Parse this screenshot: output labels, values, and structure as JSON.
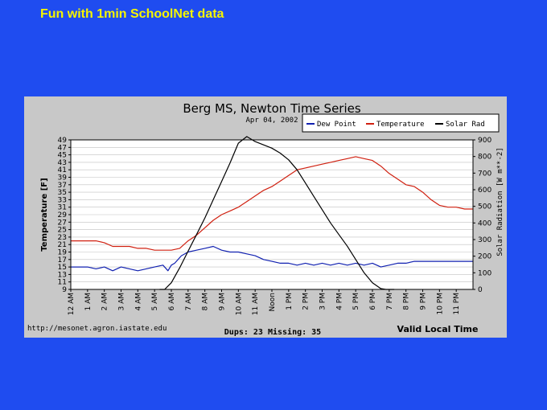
{
  "page": {
    "title": "Fun with 1min SchoolNet data"
  },
  "colors": {
    "background": "#1f4cf0",
    "panel": "#c8c8c8",
    "plot": "#ffffff",
    "title_text": "#f5f500",
    "dew_point": "#1020b0",
    "temperature": "#d02010",
    "solar": "#000000"
  },
  "chart_data": {
    "type": "line",
    "title": "Berg MS, Newton Time Series",
    "subtitle": "Apr 04, 2002",
    "xlabel": "Valid Local Time",
    "ylabel_left": "Temperature [F]",
    "ylabel_right": "Solar Radiation [W m**-2]",
    "ylim_left": [
      9,
      49
    ],
    "ylim_right": [
      0,
      900
    ],
    "xlim_hours": [
      0,
      24
    ],
    "grid": true,
    "legend_position": "top-right",
    "x_ticks": [
      "12 AM",
      "1 AM",
      "2 AM",
      "3 AM",
      "4 AM",
      "5 AM",
      "6 AM",
      "7 AM",
      "8 AM",
      "9 AM",
      "10 AM",
      "11 AM",
      "Noon",
      "1 PM",
      "2 PM",
      "3 PM",
      "4 PM",
      "5 PM",
      "6 PM",
      "7 PM",
      "8 PM",
      "9 PM",
      "10 PM",
      "11 PM"
    ],
    "y_left_ticks": [
      "9",
      "11",
      "13",
      "15",
      "17",
      "19",
      "21",
      "23",
      "25",
      "27",
      "29",
      "31",
      "33",
      "35",
      "37",
      "39",
      "41",
      "43",
      "45",
      "47",
      "49"
    ],
    "y_right_ticks": [
      "0",
      "100",
      "200",
      "300",
      "400",
      "500",
      "600",
      "700",
      "800",
      "900"
    ],
    "footer_left": "http://mesonet.agron.iastate.edu",
    "footer_center": "Dups: 23 Missing: 35",
    "series": [
      {
        "name": "Dew Point",
        "axis": "left",
        "x": [
          0,
          1,
          1.5,
          2,
          2.5,
          3,
          3.5,
          4,
          4.5,
          5,
          5.5,
          5.8,
          6,
          6.2,
          6.6,
          7,
          7.5,
          8,
          8.5,
          9,
          9.5,
          10,
          10.5,
          11,
          11.5,
          12,
          12.5,
          13,
          13.5,
          14,
          14.5,
          15,
          15.5,
          16,
          16.5,
          17,
          17.5,
          18,
          18.5,
          19,
          19.5,
          20,
          20.5,
          21,
          21.5,
          22,
          22.5,
          23,
          23.5,
          24
        ],
        "y": [
          15,
          15,
          14.5,
          15,
          14,
          15,
          14.5,
          14,
          14.5,
          15,
          15.5,
          14,
          15.5,
          16,
          18,
          19,
          19.5,
          20,
          20.5,
          19.5,
          19,
          19,
          18.5,
          18,
          17,
          16.5,
          16,
          16,
          15.5,
          16,
          15.5,
          16,
          15.5,
          16,
          15.5,
          16,
          15.5,
          16,
          15,
          15.5,
          16,
          16,
          16.5,
          16.5,
          16.5,
          16.5,
          16.5,
          16.5,
          16.5,
          16.5
        ]
      },
      {
        "name": "Temperature",
        "axis": "left",
        "x": [
          0,
          0.5,
          1,
          1.5,
          2,
          2.5,
          3,
          3.5,
          4,
          4.5,
          5,
          5.5,
          6,
          6.5,
          7,
          7.5,
          8,
          8.5,
          9,
          9.5,
          10,
          10.5,
          11,
          11.5,
          12,
          12.5,
          13,
          13.5,
          14,
          14.5,
          15,
          15.5,
          16,
          16.5,
          17,
          17.5,
          18,
          18.5,
          19,
          19.5,
          20,
          20.5,
          21,
          21.5,
          22,
          22.5,
          23,
          23.5,
          24
        ],
        "y": [
          22,
          22,
          22,
          22,
          21.5,
          20.5,
          20.5,
          20.5,
          20,
          20,
          19.5,
          19.5,
          19.5,
          20,
          22,
          23.5,
          25.5,
          27.5,
          29,
          30,
          31,
          32.5,
          34,
          35.5,
          36.5,
          38,
          39.5,
          41,
          41.5,
          42,
          42.5,
          43,
          43.5,
          44,
          44.5,
          44,
          43.5,
          42,
          40,
          38.5,
          37,
          36.5,
          35,
          33,
          31.5,
          31,
          31,
          30.5,
          30.5
        ]
      },
      {
        "name": "Solar Rad",
        "axis": "right",
        "x": [
          5.3,
          5.6,
          6,
          6.5,
          7,
          7.5,
          8,
          8.5,
          9,
          9.5,
          10,
          10.5,
          11,
          11.5,
          12,
          12.5,
          13,
          13.5,
          14,
          14.5,
          15,
          15.5,
          16,
          16.5,
          17,
          17.5,
          18,
          18.5,
          18.8,
          19,
          19.3
        ],
        "y": [
          0,
          0,
          40,
          130,
          230,
          330,
          430,
          540,
          650,
          760,
          880,
          920,
          890,
          870,
          850,
          820,
          780,
          720,
          640,
          560,
          480,
          400,
          330,
          260,
          180,
          100,
          40,
          5,
          0,
          0,
          0
        ]
      }
    ]
  },
  "legend": {
    "items": [
      "Dew Point",
      "Temperature",
      "Solar Rad"
    ]
  }
}
